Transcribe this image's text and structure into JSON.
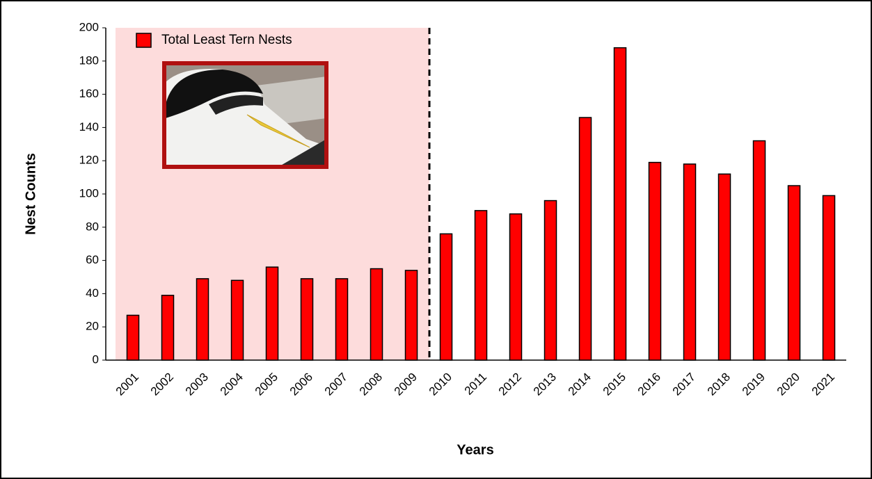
{
  "chart_data": {
    "type": "bar",
    "categories": [
      "2001",
      "2002",
      "2003",
      "2004",
      "2005",
      "2006",
      "2007",
      "2008",
      "2009",
      "2010",
      "2011",
      "2012",
      "2013",
      "2014",
      "2015",
      "2016",
      "2017",
      "2018",
      "2019",
      "2020",
      "2021"
    ],
    "series": [
      {
        "name": "Total Least Tern Nests",
        "color": "#ff0000",
        "values": [
          27,
          39,
          49,
          48,
          56,
          49,
          49,
          55,
          54,
          76,
          90,
          88,
          96,
          146,
          188,
          119,
          118,
          112,
          132,
          105,
          99
        ]
      }
    ],
    "ylim": [
      0,
      200
    ],
    "yticks": [
      0,
      20,
      40,
      60,
      80,
      100,
      120,
      140,
      160,
      180,
      200
    ],
    "x_label": "Years",
    "y_label": "Nest Counts",
    "legend": "upper left",
    "grid": false
  }
}
